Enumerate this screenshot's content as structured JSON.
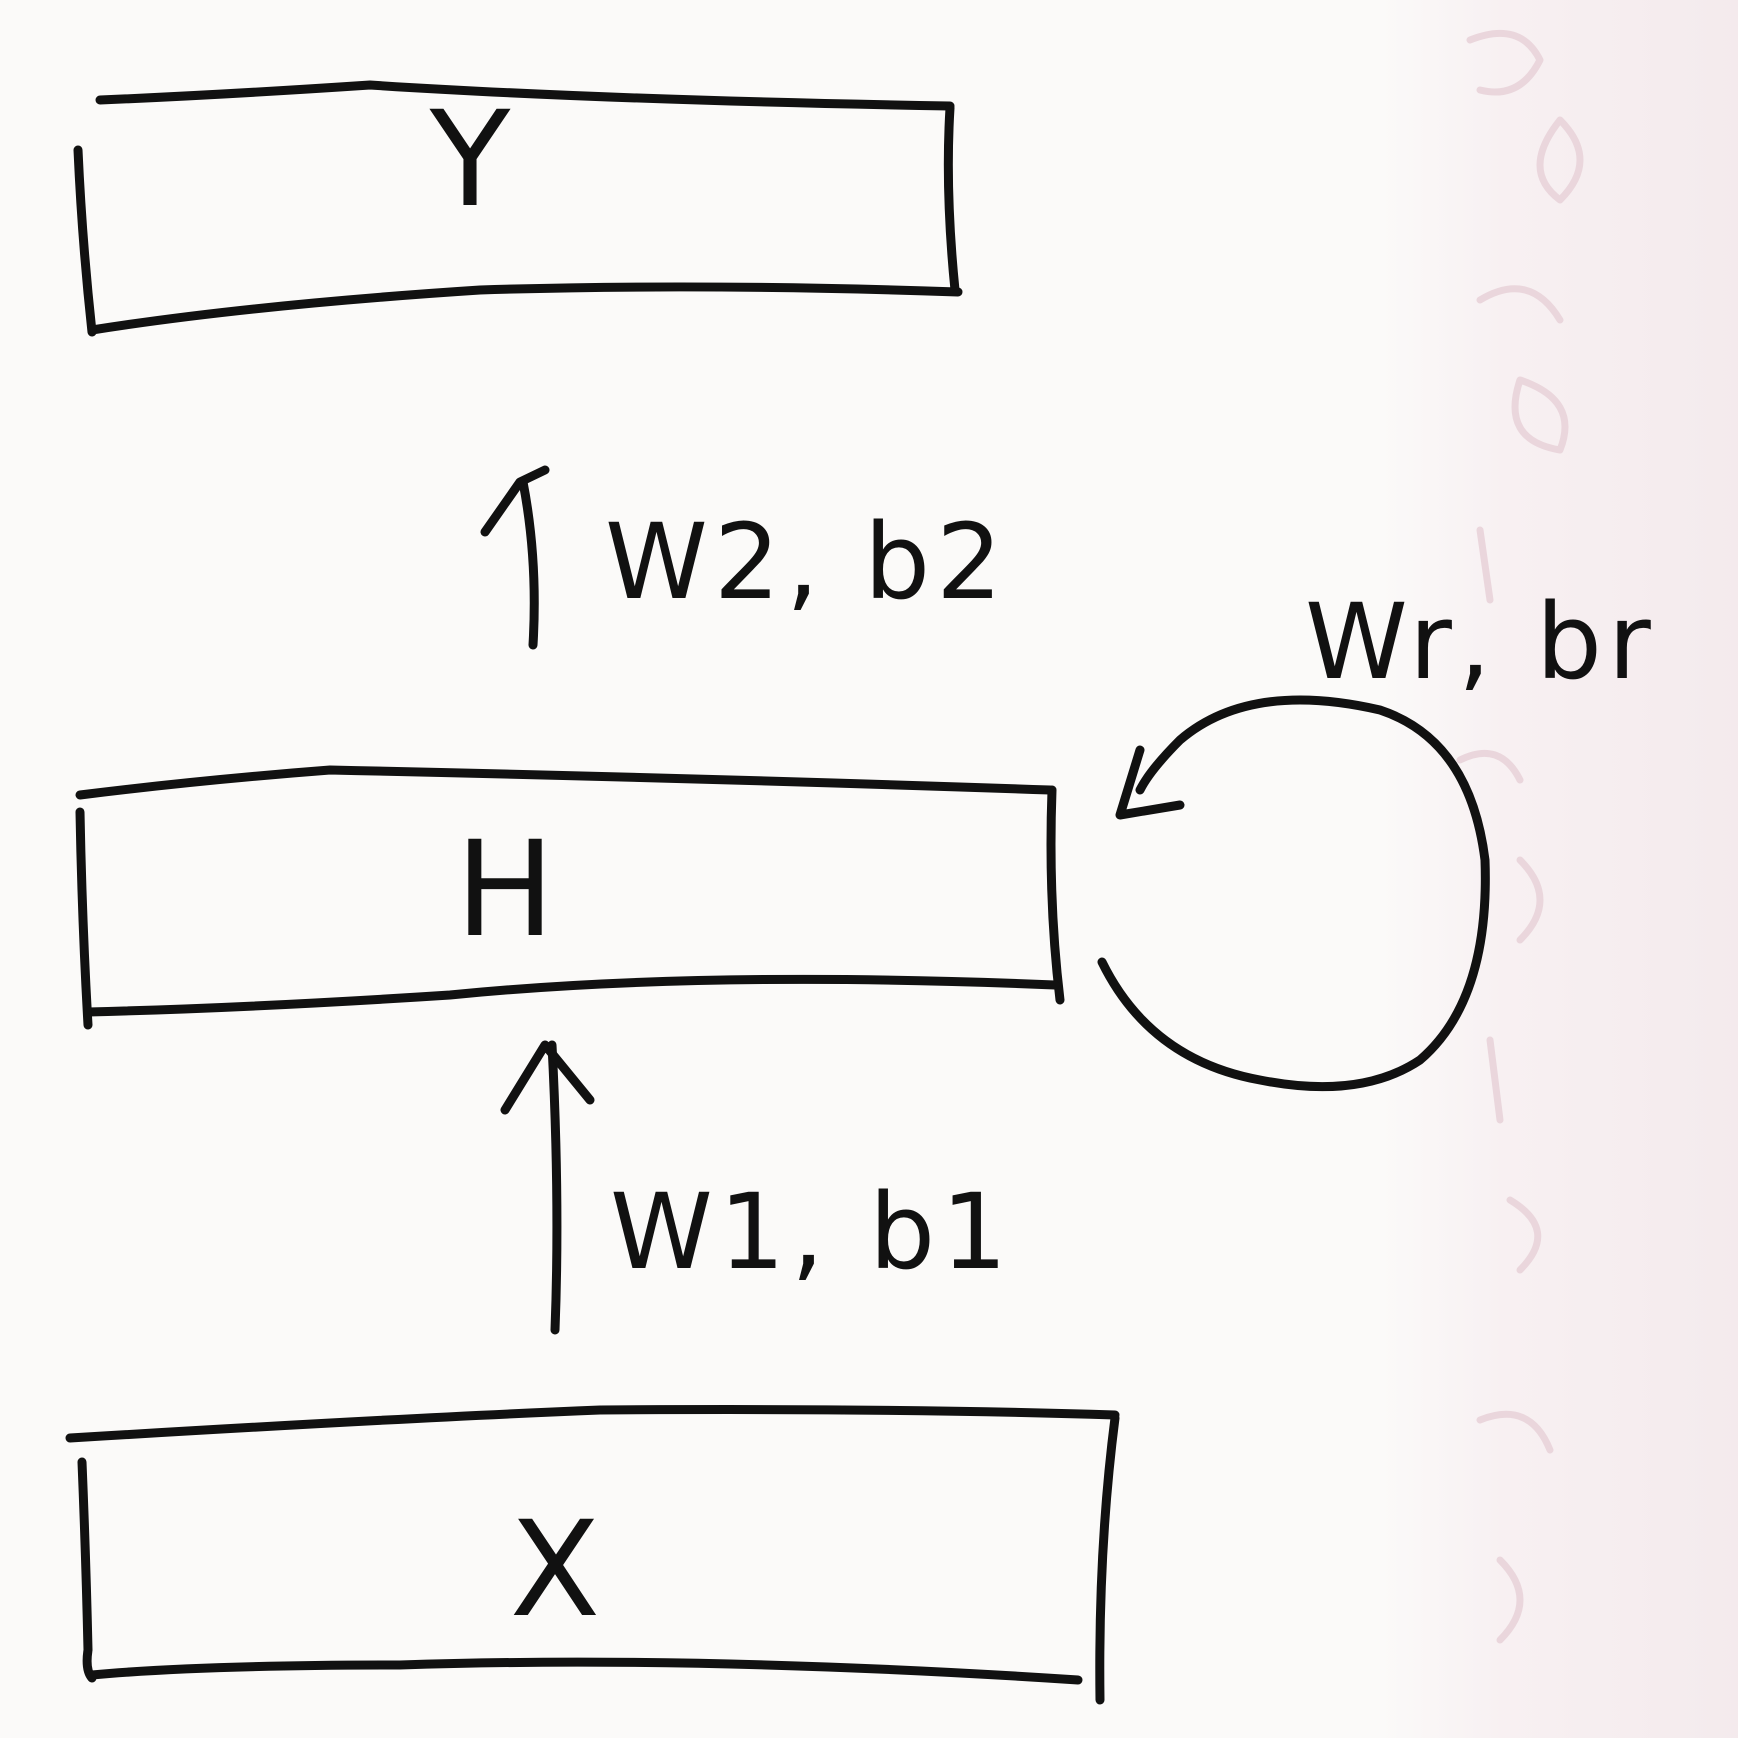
{
  "boxes": {
    "output": {
      "label": "Y"
    },
    "hidden": {
      "label": "H"
    },
    "input": {
      "label": "X"
    }
  },
  "connections": {
    "input_to_hidden": {
      "label": "W1, b1"
    },
    "hidden_to_output": {
      "label": "W2, b2"
    },
    "recurrent": {
      "label": "Wr, br"
    }
  },
  "colors": {
    "ink": "#111111",
    "paper": "#fbfaf9",
    "bleed_through": "#ead6dc"
  }
}
